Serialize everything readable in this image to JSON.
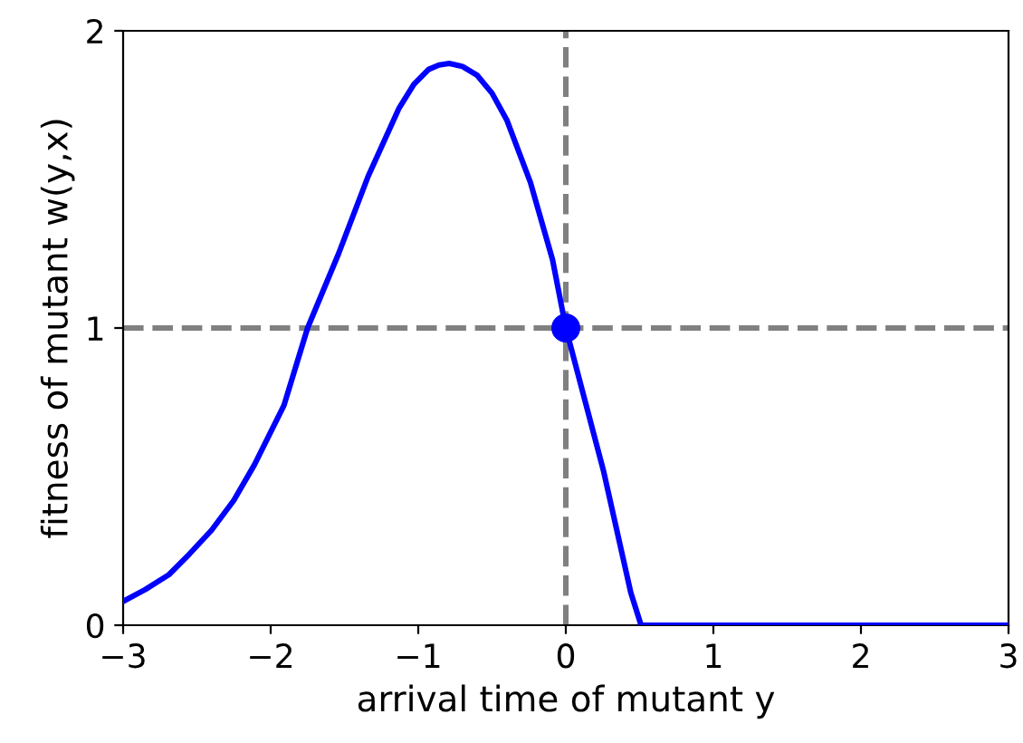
{
  "chart_data": {
    "type": "line",
    "xlabel": "arrival time of mutant y",
    "ylabel": "fitness of mutant w(y,x)",
    "series": [
      {
        "color": "#0000ff",
        "x": [
          -3,
          -2.85,
          -2.69,
          -2.55,
          -2.4,
          -2.25,
          -2.11,
          -1.91,
          -1.75,
          -1.54,
          -1.34,
          -1.13,
          -1.03,
          -0.93,
          -0.86,
          -0.79,
          -0.7,
          -0.6,
          -0.5,
          -0.4,
          -0.24,
          -0.09,
          0,
          0.255,
          0.44,
          0.51,
          1,
          2,
          3
        ],
        "values": [
          0.08,
          0.12,
          0.17,
          0.24,
          0.32,
          0.42,
          0.54,
          0.74,
          1.0,
          1.25,
          1.51,
          1.74,
          1.82,
          1.87,
          1.885,
          1.89,
          1.88,
          1.85,
          1.79,
          1.7,
          1.49,
          1.23,
          1.0,
          0.52,
          0.11,
          0,
          0,
          0,
          0
        ]
      },
      {
        "type": "scatter",
        "color": "#0000ff",
        "x": [
          0
        ],
        "values": [
          1
        ]
      }
    ],
    "xlim": [
      -3,
      3
    ],
    "xticks": [
      {
        "value": -3,
        "label": "−3"
      },
      {
        "value": -2,
        "label": "−2"
      },
      {
        "value": -1,
        "label": "−1"
      },
      0,
      1,
      2,
      3
    ],
    "ylim": [
      0,
      2
    ],
    "yticks": [
      0,
      1,
      2
    ],
    "ref_lines": [
      {
        "axis": "y",
        "value": 1,
        "color": "#808080",
        "line_style": "dashed"
      },
      {
        "axis": "x",
        "value": 0,
        "color": "#808080",
        "line_style": "dashed"
      }
    ]
  }
}
